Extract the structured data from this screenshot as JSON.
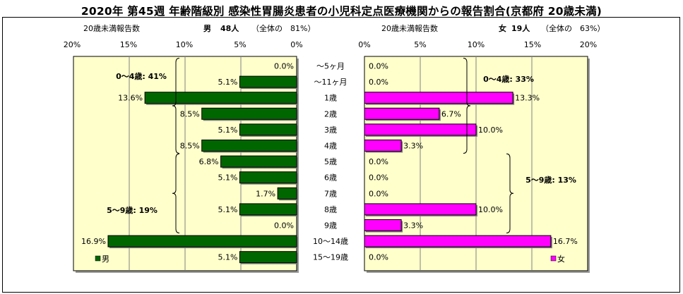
{
  "title": "2020年 第45週 年齢階級別 感染性胃腸炎患者の小児科定点医療機関からの報告割合(京都府 20歳未満)",
  "left_header": {
    "caption": "20歳未満報告数",
    "sex": "男",
    "count": "48人",
    "share": "（全体の　81%）"
  },
  "right_header": {
    "caption": "20歳未満報告数",
    "sex": "女",
    "count": "19人",
    "share": "（全体の　63%）"
  },
  "male_ticks": [
    "20%",
    "15%",
    "10%",
    "5%",
    "0%"
  ],
  "female_ticks": [
    "0%",
    "5%",
    "10%",
    "15%",
    "20%"
  ],
  "colors": {
    "male": "#006600",
    "female": "#ff00ff",
    "panel_fill": "#ffffcc"
  },
  "chart_data": {
    "type": "bar",
    "orientation": "horizontal",
    "layout": "population-pyramid",
    "categories": [
      "～5ヶ月",
      "～11ヶ月",
      "1歳",
      "2歳",
      "3歳",
      "4歳",
      "5歳",
      "6歳",
      "7歳",
      "8歳",
      "9歳",
      "10～14歳",
      "15～19歳"
    ],
    "series": [
      {
        "name": "男",
        "values": [
          0.0,
          5.1,
          13.6,
          8.5,
          5.1,
          8.5,
          6.8,
          5.1,
          1.7,
          5.1,
          0.0,
          16.9,
          5.1
        ],
        "labels": [
          "0.0%",
          "5.1%",
          "13.6%",
          "8.5%",
          "5.1%",
          "8.5%",
          "6.8%",
          "5.1%",
          "1.7%",
          "5.1%",
          "0.0%",
          "16.9%",
          "5.1%"
        ]
      },
      {
        "name": "女",
        "values": [
          0.0,
          0.0,
          13.3,
          6.7,
          10.0,
          3.3,
          0.0,
          0.0,
          0.0,
          10.0,
          3.3,
          16.7,
          0.0
        ],
        "labels": [
          "0.0%",
          "0.0%",
          "13.3%",
          "6.7%",
          "10.0%",
          "3.3%",
          "0.0%",
          "0.0%",
          "0.0%",
          "10.0%",
          "3.3%",
          "16.7%",
          "0.0%"
        ]
      }
    ],
    "xlim": [
      0,
      20
    ],
    "xunit": "%",
    "grid": true,
    "annotations": {
      "male": [
        {
          "text": "0～4歳: 41%",
          "from": 0,
          "to": 5
        },
        {
          "text": "5～9歳: 19%",
          "from": 6,
          "to": 10
        }
      ],
      "female": [
        {
          "text": "0～4歳: 33%",
          "from": 0,
          "to": 5
        },
        {
          "text": "5～9歳: 13%",
          "from": 6,
          "to": 10
        }
      ]
    },
    "legend": [
      {
        "text": "男",
        "position": "bottom-left"
      },
      {
        "text": "女",
        "position": "bottom-right"
      }
    ]
  }
}
